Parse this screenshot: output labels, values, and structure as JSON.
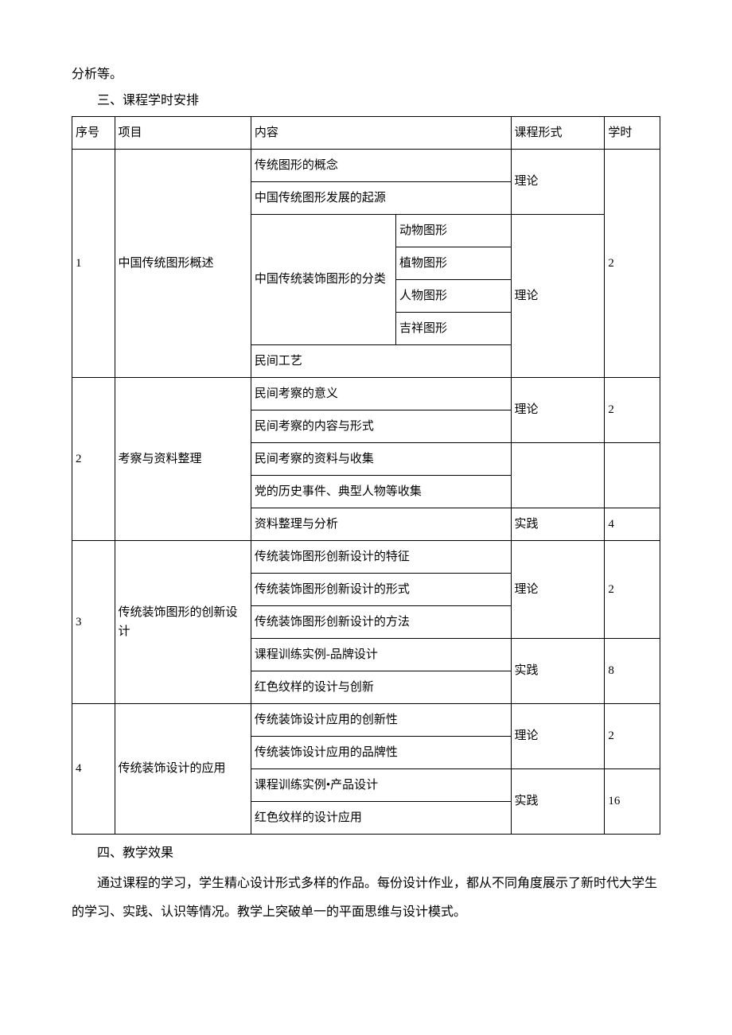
{
  "preText": "分析等。",
  "section3Title": "三、课程学时安排",
  "section4Title": "四、教学效果",
  "footerPara": "通过课程的学习，学生精心设计形式多样的作品。每份设计作业，都从不同角度展示了新时代大学生的学习、实践、认识等情况。教学上突破单一的平面思维与设计模式。",
  "headers": {
    "seq": "序号",
    "proj": "项目",
    "content": "内容",
    "form": "课程形式",
    "hours": "学时"
  },
  "rows": {
    "r1": {
      "seq": "1",
      "proj": "中国传统图形概述",
      "c1": "传统图形的概念",
      "c2": "中国传统图形发展的起源",
      "c3": "中国传统装饰图形的分类",
      "c3a": "动物图形",
      "c3b": "植物图形",
      "c3c": "人物图形",
      "c3d": "吉祥图形",
      "c4": "民间工艺",
      "form1": "理论",
      "form2": "理论",
      "hours": "2"
    },
    "r2": {
      "seq": "2",
      "proj": "考察与资料整理",
      "c1": "民间考察的意义",
      "c2": "民间考察的内容与形式",
      "c3": "民间考察的资料与收集",
      "c4": "党的历史事件、典型人物等收集",
      "c5": "资料整理与分析",
      "form1": "理论",
      "form2": "实践",
      "hours1": "2",
      "hours2": "4"
    },
    "r3": {
      "seq": "3",
      "proj": "传统装饰图形的创新设计",
      "c1": "传统装饰图形创新设计的特征",
      "c2": "传统装饰图形创新设计的形式",
      "c3": "传统装饰图形创新设计的方法",
      "c4": "课程训练实例-品牌设计",
      "c5": "红色纹样的设计与创新",
      "form1": "理论",
      "form2": "实践",
      "hours1": "2",
      "hours2": "8"
    },
    "r4": {
      "seq": "4",
      "proj": "传统装饰设计的应用",
      "c1": "传统装饰设计应用的创新性",
      "c2": "传统装饰设计应用的品牌性",
      "c3": "课程训练实例•产品设计",
      "c4": "红色纹样的设计应用",
      "form1": "理论",
      "form2": "实践",
      "hours1": "2",
      "hours2": "16"
    }
  }
}
